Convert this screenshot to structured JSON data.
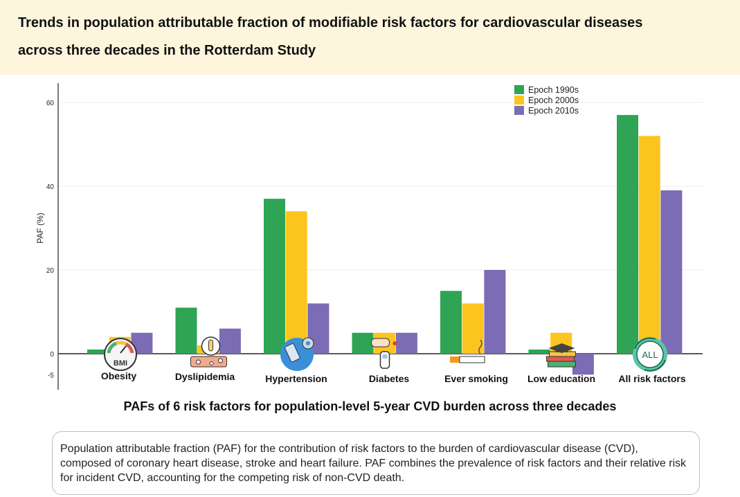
{
  "header": {
    "title_line1": "Trends in population attributable fraction of modifiable risk factors for cardiovascular diseases",
    "title_line2": "across three decades in the Rotterdam Study"
  },
  "chart_data": {
    "type": "bar",
    "categories": [
      "Obesity",
      "Dyslipidemia",
      "Hypertension",
      "Diabetes",
      "Ever smoking",
      "Low education",
      "All risk factors"
    ],
    "series": [
      {
        "name": "Epoch 1990s",
        "color": "#2ea454",
        "values": [
          1,
          11,
          37,
          5,
          15,
          1,
          57
        ]
      },
      {
        "name": "Epoch 2000s",
        "color": "#fcc41e",
        "values": [
          4,
          2,
          34,
          5,
          12,
          5,
          52
        ]
      },
      {
        "name": "Epoch 2010s",
        "color": "#7b6cb5",
        "values": [
          5,
          6,
          12,
          5,
          20,
          -5,
          39
        ]
      }
    ],
    "ylabel": "PAF (%)",
    "xlabel": "",
    "yticks": [
      -5,
      0,
      20,
      40,
      60
    ],
    "ylim": [
      -8,
      64
    ],
    "grid": true,
    "legend_position": "top-right",
    "icons": [
      "bmi-gauge-icon",
      "cholesterol-icon",
      "blood-pressure-icon",
      "glucose-meter-icon",
      "cigarette-icon",
      "books-graduation-cap-icon",
      "all-icon"
    ],
    "icon_labels": [
      "BMI",
      "",
      "",
      "",
      "",
      "",
      "ALL"
    ]
  },
  "chart": {
    "subtitle": "PAFs of 6 risk factors for population-level 5-year CVD burden across three decades"
  },
  "note": {
    "text": "Population attributable fraction (PAF) for the contribution of risk factors to the burden of cardiovascular disease (CVD), composed of coronary heart disease, stroke and heart failure. PAF combines the prevalence of risk factors and their relative risk for incident CVD, accounting for the competing risk of non-CVD death."
  }
}
